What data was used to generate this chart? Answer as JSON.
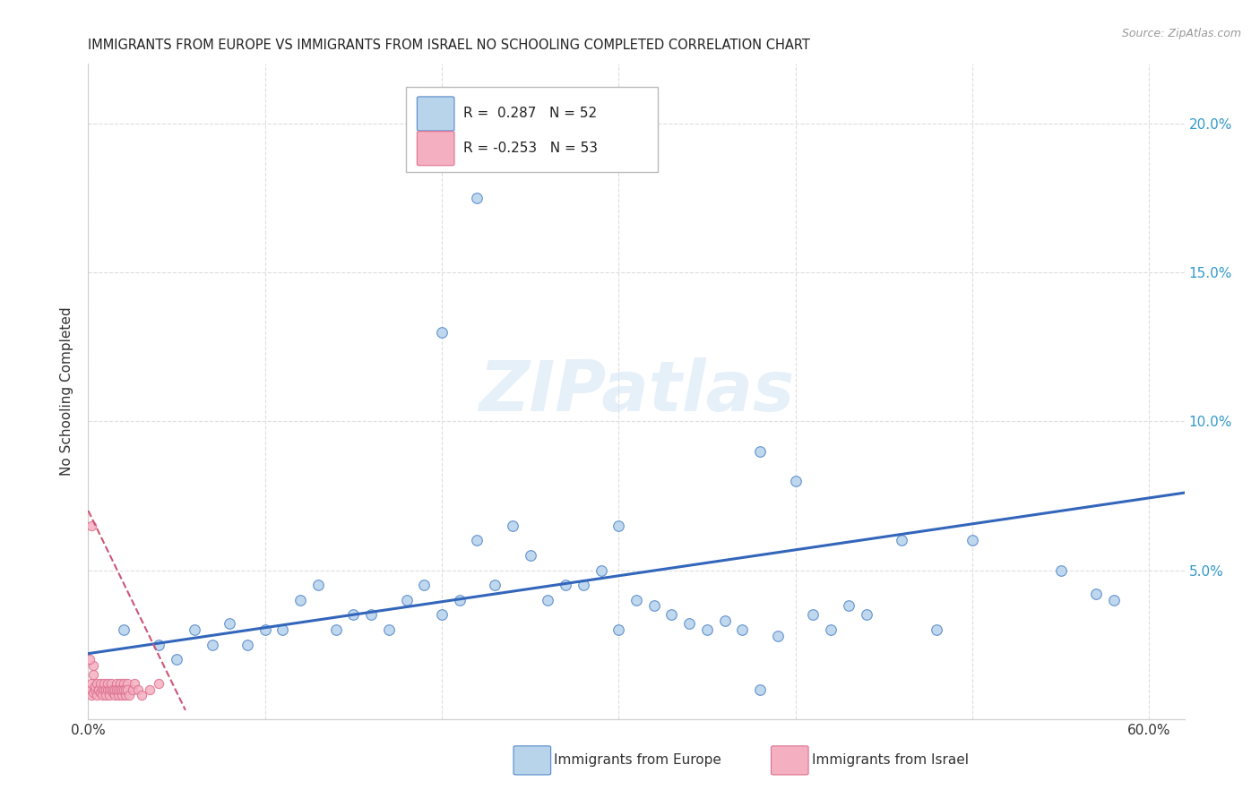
{
  "title": "IMMIGRANTS FROM EUROPE VS IMMIGRANTS FROM ISRAEL NO SCHOOLING COMPLETED CORRELATION CHART",
  "source": "Source: ZipAtlas.com",
  "ylabel": "No Schooling Completed",
  "blue_R": 0.287,
  "blue_N": 52,
  "pink_R": -0.253,
  "pink_N": 53,
  "blue_color": "#b8d4eb",
  "pink_color": "#f4b0c0",
  "blue_edge_color": "#5588cc",
  "pink_edge_color": "#dd7090",
  "blue_line_color": "#3366bb",
  "pink_line_color": "#cc5577",
  "watermark": "ZIPatlas",
  "xlim": [
    0.0,
    0.62
  ],
  "ylim": [
    0.0,
    0.22
  ],
  "blue_x": [
    0.02,
    0.04,
    0.05,
    0.06,
    0.07,
    0.08,
    0.09,
    0.1,
    0.11,
    0.12,
    0.13,
    0.14,
    0.15,
    0.16,
    0.17,
    0.18,
    0.19,
    0.2,
    0.21,
    0.22,
    0.23,
    0.24,
    0.25,
    0.26,
    0.27,
    0.28,
    0.29,
    0.3,
    0.31,
    0.32,
    0.33,
    0.34,
    0.35,
    0.36,
    0.37,
    0.38,
    0.39,
    0.4,
    0.41,
    0.43,
    0.44,
    0.46,
    0.48,
    0.5,
    0.55,
    0.57,
    0.58,
    0.22,
    0.2,
    0.3,
    0.38,
    0.42
  ],
  "blue_y": [
    0.03,
    0.025,
    0.02,
    0.03,
    0.025,
    0.032,
    0.025,
    0.03,
    0.03,
    0.04,
    0.045,
    0.03,
    0.035,
    0.035,
    0.03,
    0.04,
    0.045,
    0.035,
    0.04,
    0.06,
    0.045,
    0.065,
    0.055,
    0.04,
    0.045,
    0.045,
    0.05,
    0.03,
    0.04,
    0.038,
    0.035,
    0.032,
    0.03,
    0.033,
    0.03,
    0.09,
    0.028,
    0.08,
    0.035,
    0.038,
    0.035,
    0.06,
    0.03,
    0.06,
    0.05,
    0.042,
    0.04,
    0.175,
    0.13,
    0.065,
    0.01,
    0.03
  ],
  "pink_x": [
    0.001,
    0.002,
    0.002,
    0.003,
    0.003,
    0.004,
    0.004,
    0.005,
    0.005,
    0.006,
    0.006,
    0.007,
    0.007,
    0.008,
    0.008,
    0.009,
    0.009,
    0.01,
    0.01,
    0.011,
    0.011,
    0.012,
    0.012,
    0.013,
    0.013,
    0.014,
    0.014,
    0.015,
    0.015,
    0.016,
    0.016,
    0.017,
    0.017,
    0.018,
    0.018,
    0.019,
    0.019,
    0.02,
    0.02,
    0.021,
    0.021,
    0.022,
    0.022,
    0.023,
    0.025,
    0.026,
    0.028,
    0.03,
    0.035,
    0.04,
    0.002,
    0.003,
    0.001
  ],
  "pink_y": [
    0.01,
    0.008,
    0.012,
    0.009,
    0.015,
    0.01,
    0.011,
    0.008,
    0.012,
    0.01,
    0.01,
    0.012,
    0.009,
    0.01,
    0.008,
    0.01,
    0.012,
    0.01,
    0.008,
    0.01,
    0.012,
    0.01,
    0.008,
    0.01,
    0.012,
    0.009,
    0.01,
    0.008,
    0.01,
    0.012,
    0.01,
    0.008,
    0.01,
    0.012,
    0.01,
    0.008,
    0.01,
    0.012,
    0.01,
    0.008,
    0.01,
    0.012,
    0.01,
    0.008,
    0.01,
    0.012,
    0.01,
    0.008,
    0.01,
    0.012,
    0.065,
    0.018,
    0.02
  ]
}
